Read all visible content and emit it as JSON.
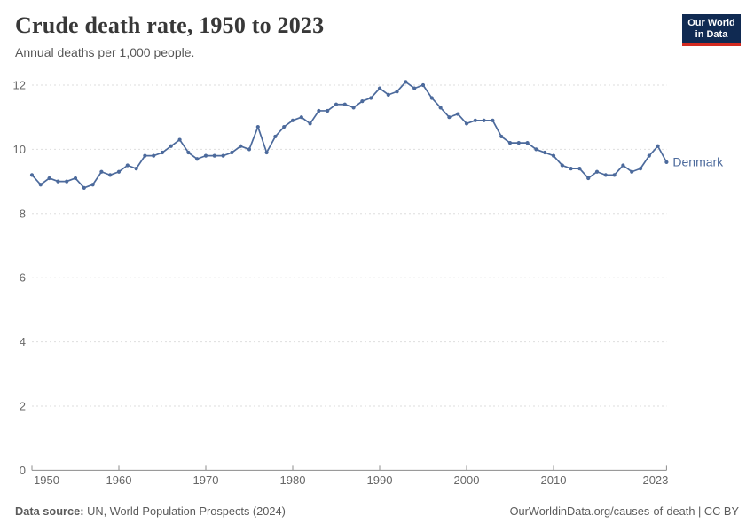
{
  "header": {
    "title": "Crude death rate, 1950 to 2023",
    "subtitle": "Annual deaths per 1,000 people.",
    "logo": {
      "line1": "Our World",
      "line2": "in Data"
    }
  },
  "footer": {
    "source_label": "Data source:",
    "source_text": " UN, World Population Prospects (2024)",
    "right_text": "OurWorldinData.org/causes-of-death | CC BY"
  },
  "colors": {
    "line": "#4C6A9C",
    "grid": "#DEDEDE",
    "axis": "#8C8C8C",
    "tick_text": "#676767",
    "title_text": "#383838",
    "subtitle_text": "#575757",
    "footer_text": "#5B5B5B",
    "logo_bg": "#102A52",
    "logo_red": "#D42B21"
  },
  "chart_data": {
    "type": "line",
    "title": "Crude death rate, 1950 to 2023",
    "subtitle": "Annual deaths per 1,000 people.",
    "xlabel": "",
    "ylabel": "",
    "xlim": [
      1950,
      2023
    ],
    "ylim": [
      0,
      12
    ],
    "xticks": [
      1950,
      1960,
      1970,
      1980,
      1990,
      2000,
      2010,
      2023
    ],
    "yticks": [
      0,
      2,
      4,
      6,
      8,
      10,
      12
    ],
    "grid": "horizontal-dashed",
    "legend_position": "end-of-line",
    "series": [
      {
        "name": "Denmark",
        "color": "#4C6A9C",
        "x": [
          1950,
          1951,
          1952,
          1953,
          1954,
          1955,
          1956,
          1957,
          1958,
          1959,
          1960,
          1961,
          1962,
          1963,
          1964,
          1965,
          1966,
          1967,
          1968,
          1969,
          1970,
          1971,
          1972,
          1973,
          1974,
          1975,
          1976,
          1977,
          1978,
          1979,
          1980,
          1981,
          1982,
          1983,
          1984,
          1985,
          1986,
          1987,
          1988,
          1989,
          1990,
          1991,
          1992,
          1993,
          1994,
          1995,
          1996,
          1997,
          1998,
          1999,
          2000,
          2001,
          2002,
          2003,
          2004,
          2005,
          2006,
          2007,
          2008,
          2009,
          2010,
          2011,
          2012,
          2013,
          2014,
          2015,
          2016,
          2017,
          2018,
          2019,
          2020,
          2021,
          2022,
          2023
        ],
        "values": [
          9.2,
          8.9,
          9.1,
          9.0,
          9.0,
          9.1,
          8.8,
          8.9,
          9.3,
          9.2,
          9.3,
          9.5,
          9.4,
          9.8,
          9.8,
          9.9,
          10.1,
          10.3,
          9.9,
          9.7,
          9.8,
          9.8,
          9.8,
          9.9,
          10.1,
          10.0,
          10.7,
          9.9,
          10.4,
          10.7,
          10.9,
          11.0,
          10.8,
          11.2,
          11.2,
          11.4,
          11.4,
          11.3,
          11.5,
          11.6,
          11.9,
          11.7,
          11.8,
          12.1,
          11.9,
          12.0,
          11.6,
          11.3,
          11.0,
          11.1,
          10.8,
          10.9,
          10.9,
          10.9,
          10.4,
          10.2,
          10.2,
          10.2,
          10.0,
          9.9,
          9.8,
          9.5,
          9.4,
          9.4,
          9.1,
          9.3,
          9.2,
          9.2,
          9.5,
          9.3,
          9.4,
          9.8,
          10.1,
          9.6
        ]
      }
    ]
  }
}
